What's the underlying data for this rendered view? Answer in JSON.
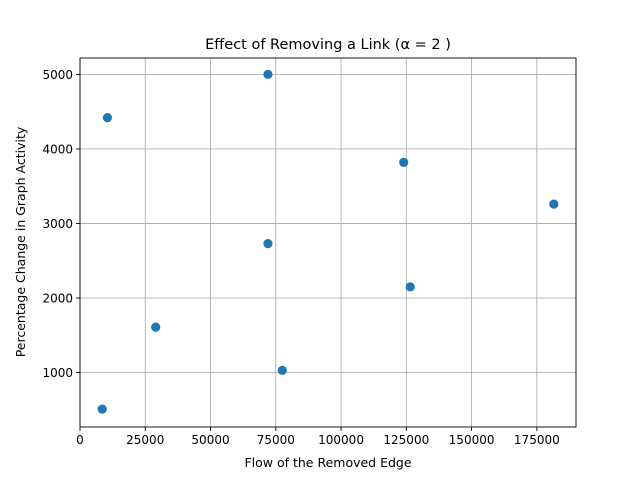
{
  "chart_data": {
    "type": "scatter",
    "title": "Effect of Removing a Link (α = 2 )",
    "xlabel": "Flow of the Removed Edge",
    "ylabel": "Percentage Change in Graph Activity",
    "xlim": [
      0,
      190000
    ],
    "ylim": [
      270,
      5220
    ],
    "xticks": [
      0,
      25000,
      50000,
      75000,
      100000,
      125000,
      150000,
      175000
    ],
    "yticks": [
      1000,
      2000,
      3000,
      4000,
      5000
    ],
    "grid": true,
    "marker_color": "#1f77b4",
    "points": [
      {
        "x": 72000,
        "y": 5000
      },
      {
        "x": 10500,
        "y": 4420
      },
      {
        "x": 124000,
        "y": 3820
      },
      {
        "x": 181500,
        "y": 3260
      },
      {
        "x": 72000,
        "y": 2730
      },
      {
        "x": 126500,
        "y": 2150
      },
      {
        "x": 29000,
        "y": 1610
      },
      {
        "x": 77500,
        "y": 1030
      },
      {
        "x": 8500,
        "y": 510
      }
    ]
  }
}
